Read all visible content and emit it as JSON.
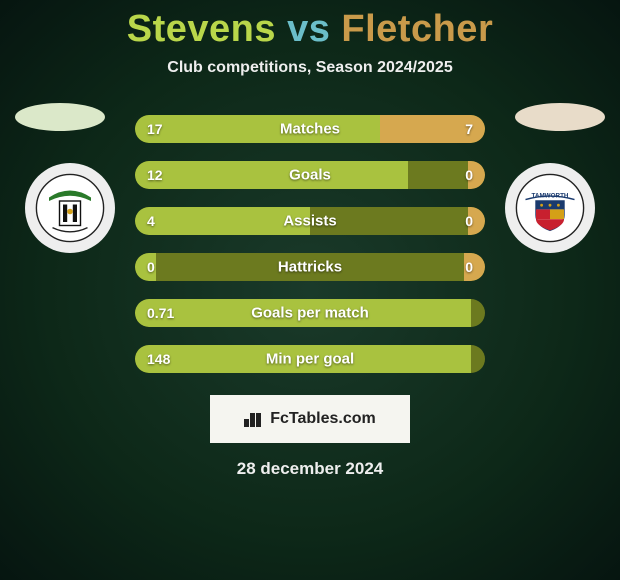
{
  "title": {
    "player1": "Stevens",
    "vs": "vs",
    "player2": "Fletcher",
    "color1": "#b9d64a",
    "colorVs": "#6bbec9",
    "color2": "#c99a4a"
  },
  "subtitle": "Club competitions, Season 2024/2025",
  "ellipse": {
    "leftColor": "#dbe8c9",
    "rightColor": "#e8dcc9"
  },
  "crests": {
    "left": {
      "name": "solihull-moors-crest",
      "bgColor": "#eeeeee"
    },
    "right": {
      "name": "tamworth-crest",
      "bgColor": "#eeeeee"
    }
  },
  "bars": {
    "trackColor": "#6c7a1f",
    "leftColor": "#a9c23f",
    "rightColor": "#d6a84f",
    "rows": [
      {
        "label": "Matches",
        "leftVal": "17",
        "rightVal": "7",
        "leftPct": 70,
        "rightPct": 30
      },
      {
        "label": "Goals",
        "leftVal": "12",
        "rightVal": "0",
        "leftPct": 78,
        "rightPct": 5
      },
      {
        "label": "Assists",
        "leftVal": "4",
        "rightVal": "0",
        "leftPct": 50,
        "rightPct": 5
      },
      {
        "label": "Hattricks",
        "leftVal": "0",
        "rightVal": "0",
        "leftPct": 6,
        "rightPct": 6
      },
      {
        "label": "Goals per match",
        "leftVal": "0.71",
        "rightVal": "",
        "leftPct": 96,
        "rightPct": 0
      },
      {
        "label": "Min per goal",
        "leftVal": "148",
        "rightVal": "",
        "leftPct": 96,
        "rightPct": 0
      }
    ]
  },
  "footer": {
    "brand": "FcTables.com",
    "badgeBg": "#f5f5f0"
  },
  "date": "28 december 2024"
}
